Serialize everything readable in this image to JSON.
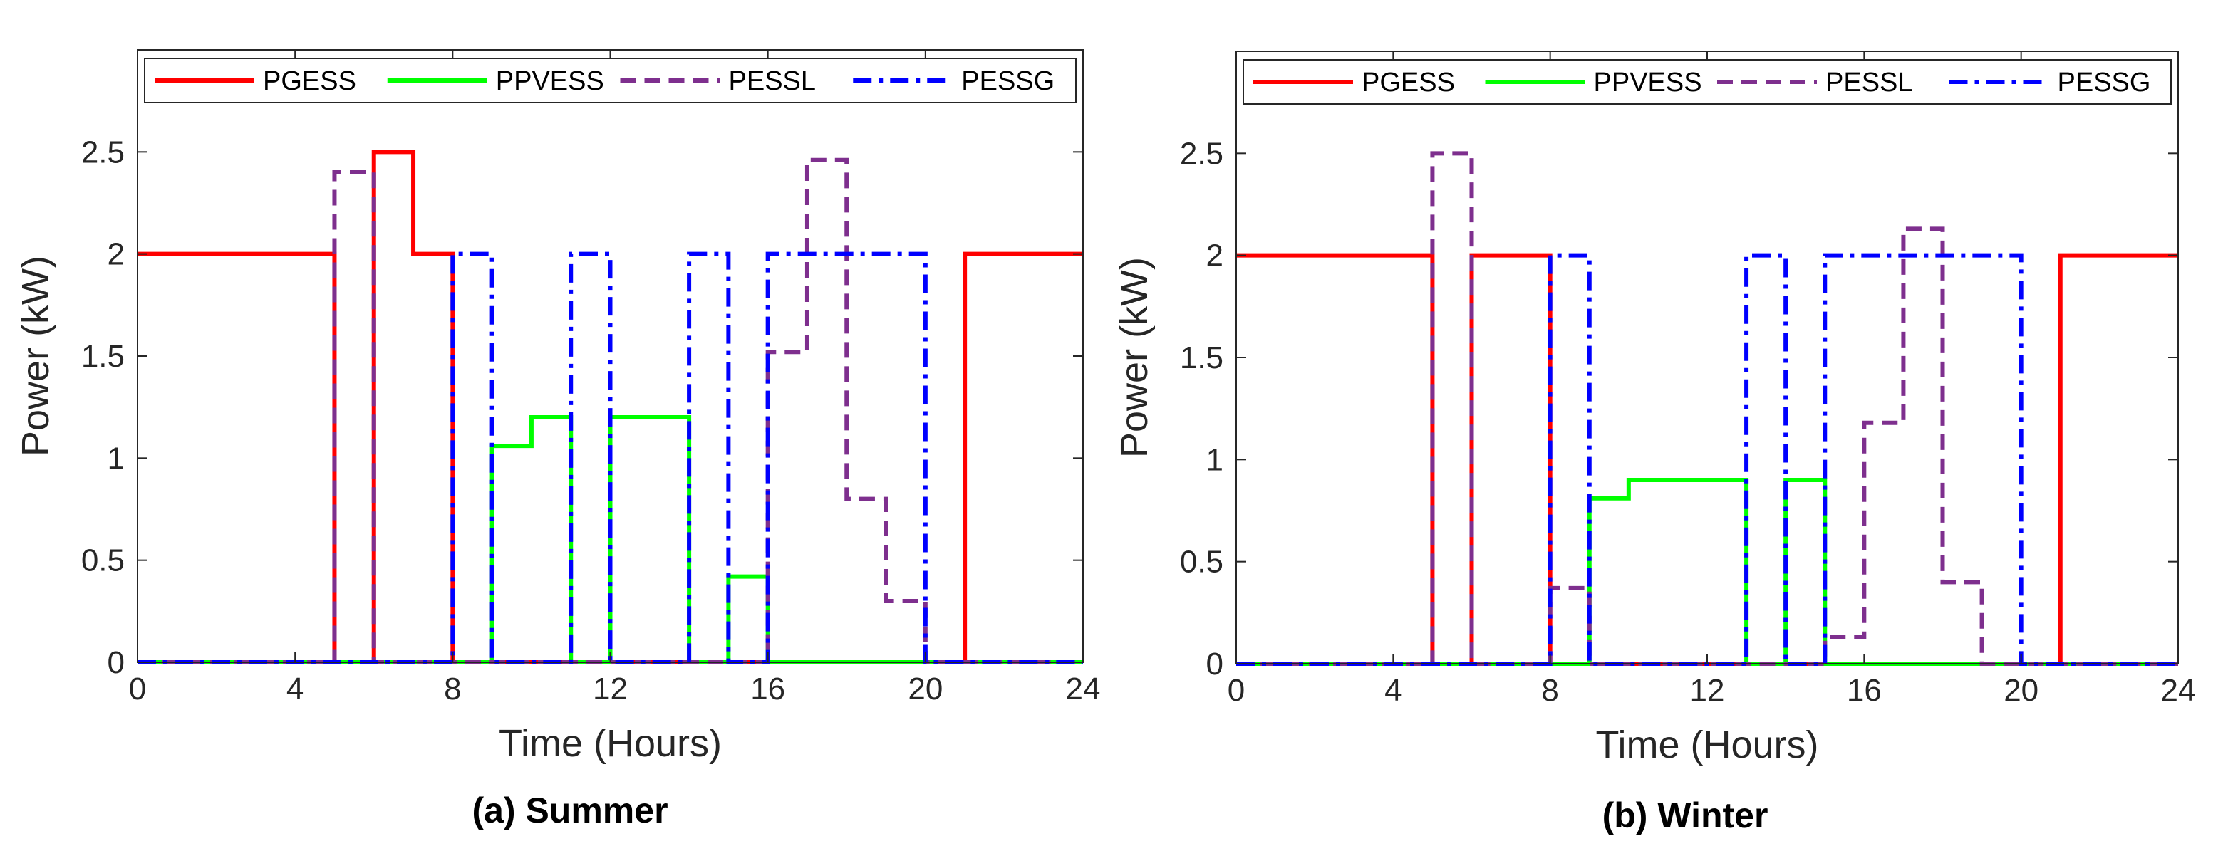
{
  "chart_data": [
    {
      "type": "line",
      "step": true,
      "caption": "(a) Summer",
      "xlabel": "Time (Hours)",
      "ylabel": "Power (kW)",
      "xlim": [
        0,
        24
      ],
      "ylim": [
        0,
        3
      ],
      "xticks": [
        "0",
        "4",
        "8",
        "12",
        "16",
        "20",
        "24"
      ],
      "yticks": [
        "0",
        "0.5",
        "1",
        "1.5",
        "2",
        "2.5"
      ],
      "legend_position": "top",
      "series": [
        {
          "name": "PGESS",
          "color": "#ff0000",
          "style": "solid",
          "x": [
            0,
            1,
            2,
            3,
            4,
            5,
            6,
            7,
            8,
            9,
            10,
            11,
            12,
            13,
            14,
            15,
            16,
            17,
            18,
            19,
            20,
            21,
            22,
            23,
            24
          ],
          "y": [
            2,
            2,
            2,
            2,
            2,
            0,
            2.5,
            2,
            0,
            0,
            0,
            0,
            0,
            0,
            0,
            0,
            0,
            0,
            0,
            0,
            0,
            2,
            2,
            2,
            2
          ]
        },
        {
          "name": "PPVESS",
          "color": "#00ff00",
          "style": "solid",
          "x": [
            0,
            1,
            2,
            3,
            4,
            5,
            6,
            7,
            8,
            9,
            10,
            11,
            12,
            13,
            14,
            15,
            16,
            17,
            18,
            19,
            20,
            21,
            22,
            23,
            24
          ],
          "y": [
            0,
            0,
            0,
            0,
            0,
            0,
            0,
            0,
            0,
            1.06,
            1.2,
            0,
            1.2,
            1.2,
            0,
            0.42,
            0,
            0,
            0,
            0,
            0,
            0,
            0,
            0,
            0
          ]
        },
        {
          "name": "PESSL",
          "color": "#7e2f8e",
          "style": "dashed",
          "x": [
            0,
            1,
            2,
            3,
            4,
            5,
            6,
            7,
            8,
            9,
            10,
            11,
            12,
            13,
            14,
            15,
            16,
            17,
            18,
            19,
            20,
            21,
            22,
            23,
            24
          ],
          "y": [
            0,
            0,
            0,
            0,
            0,
            2.4,
            0,
            0,
            0,
            0,
            0,
            0,
            0,
            0,
            0,
            0,
            1.52,
            2.46,
            0.8,
            0.3,
            0,
            0,
            0,
            0,
            0
          ]
        },
        {
          "name": "PESSG",
          "color": "#0000ff",
          "style": "dashdot",
          "x": [
            0,
            1,
            2,
            3,
            4,
            5,
            6,
            7,
            8,
            9,
            10,
            11,
            12,
            13,
            14,
            15,
            16,
            17,
            18,
            19,
            20,
            21,
            22,
            23,
            24
          ],
          "y": [
            0,
            0,
            0,
            0,
            0,
            0,
            0,
            0,
            2,
            0,
            0,
            2,
            0,
            0,
            2,
            0,
            2,
            2,
            2,
            2,
            0,
            0,
            0,
            0,
            0
          ]
        }
      ]
    },
    {
      "type": "line",
      "step": true,
      "caption": "(b) Winter",
      "xlabel": "Time (Hours)",
      "ylabel": "Power (kW)",
      "xlim": [
        0,
        24
      ],
      "ylim": [
        0,
        3
      ],
      "xticks": [
        "0",
        "4",
        "8",
        "12",
        "16",
        "20",
        "24"
      ],
      "yticks": [
        "0",
        "0.5",
        "1",
        "1.5",
        "2",
        "2.5"
      ],
      "legend_position": "top",
      "series": [
        {
          "name": "PGESS",
          "color": "#ff0000",
          "style": "solid",
          "x": [
            0,
            1,
            2,
            3,
            4,
            5,
            6,
            7,
            8,
            9,
            10,
            11,
            12,
            13,
            14,
            15,
            16,
            17,
            18,
            19,
            20,
            21,
            22,
            23,
            24
          ],
          "y": [
            2,
            2,
            2,
            2,
            2,
            0,
            2,
            2,
            0,
            0,
            0,
            0,
            0,
            0,
            0,
            0,
            0,
            0,
            0,
            0,
            0,
            2,
            2,
            2,
            2
          ]
        },
        {
          "name": "PPVESS",
          "color": "#00ff00",
          "style": "solid",
          "x": [
            0,
            1,
            2,
            3,
            4,
            5,
            6,
            7,
            8,
            9,
            10,
            11,
            12,
            13,
            14,
            15,
            16,
            17,
            18,
            19,
            20,
            21,
            22,
            23,
            24
          ],
          "y": [
            0,
            0,
            0,
            0,
            0,
            0,
            0,
            0,
            0,
            0.81,
            0.9,
            0.9,
            0.9,
            0,
            0.9,
            0,
            0,
            0,
            0,
            0,
            0,
            0,
            0,
            0,
            0
          ]
        },
        {
          "name": "PESSL",
          "color": "#7e2f8e",
          "style": "dashed",
          "x": [
            0,
            1,
            2,
            3,
            4,
            5,
            6,
            7,
            8,
            9,
            10,
            11,
            12,
            13,
            14,
            15,
            16,
            17,
            18,
            19,
            20,
            21,
            22,
            23,
            24
          ],
          "y": [
            0,
            0,
            0,
            0,
            0,
            2.5,
            0,
            0,
            0.37,
            0,
            0,
            0,
            0,
            0,
            0,
            0.13,
            1.18,
            2.13,
            0.4,
            0,
            0,
            0,
            0,
            0,
            0
          ]
        },
        {
          "name": "PESSG",
          "color": "#0000ff",
          "style": "dashdot",
          "x": [
            0,
            1,
            2,
            3,
            4,
            5,
            6,
            7,
            8,
            9,
            10,
            11,
            12,
            13,
            14,
            15,
            16,
            17,
            18,
            19,
            20,
            21,
            22,
            23,
            24
          ],
          "y": [
            0,
            0,
            0,
            0,
            0,
            0,
            0,
            0,
            2,
            0,
            0,
            0,
            0,
            2,
            0,
            2,
            2,
            2,
            2,
            2,
            0,
            0,
            0,
            0,
            0
          ]
        }
      ]
    }
  ]
}
